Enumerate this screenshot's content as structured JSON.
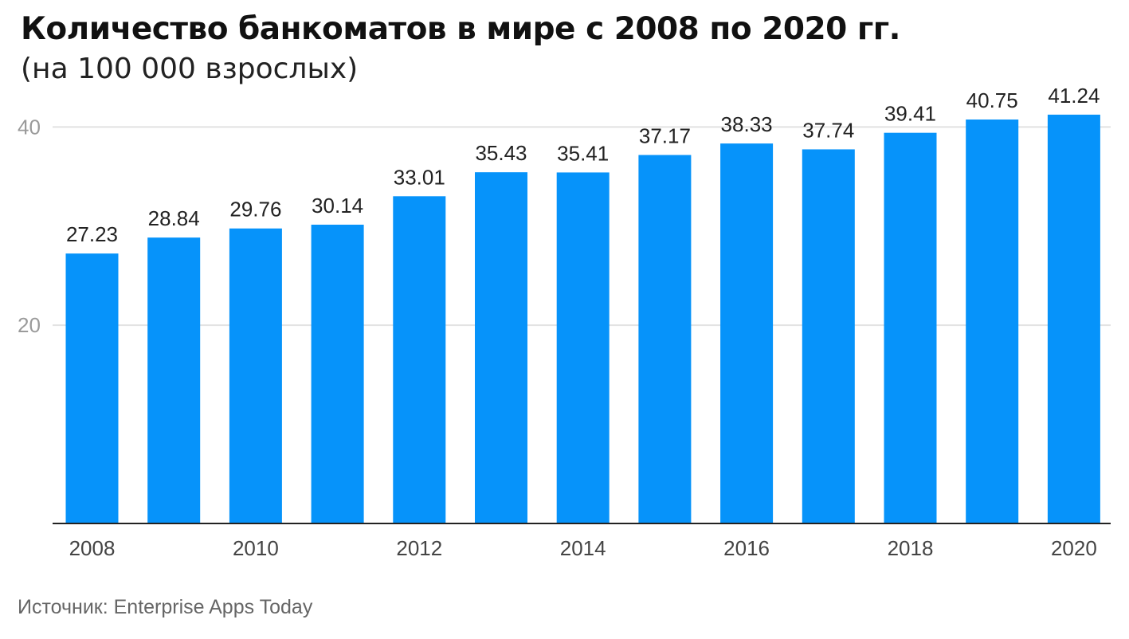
{
  "header": {
    "title": "Количество банкоматов в мире с 2008 по 2020 гг.",
    "subtitle": "(на 100 000 взрослых)"
  },
  "footer": {
    "source": "Источник: Enterprise Apps Today"
  },
  "colors": {
    "bar": "#0693fa",
    "grid": "#e2e2e2",
    "axis": "#222222"
  },
  "chart_data": {
    "type": "bar",
    "title": "Количество банкоматов в мире с 2008 по 2020 гг.",
    "subtitle": "(на 100 000 взрослых)",
    "categories": [
      "2008",
      "2009",
      "2010",
      "2011",
      "2012",
      "2013",
      "2014",
      "2015",
      "2016",
      "2017",
      "2018",
      "2019",
      "2020"
    ],
    "values": [
      27.23,
      28.84,
      29.76,
      30.14,
      33.01,
      35.43,
      35.41,
      37.17,
      38.33,
      37.74,
      39.41,
      40.75,
      41.24
    ],
    "data_labels": [
      "27.23",
      "28.84",
      "29.76",
      "30.14",
      "33.01",
      "35.43",
      "35.41",
      "37.17",
      "38.33",
      "37.74",
      "39.41",
      "40.75",
      "41.24"
    ],
    "x_tick_labels": [
      "2008",
      "2010",
      "2012",
      "2014",
      "2016",
      "2018",
      "2020"
    ],
    "y_ticks": [
      20,
      40
    ],
    "ylim": [
      0,
      40.75
    ],
    "xlabel": "",
    "ylabel": "",
    "grid": true,
    "legend": "none"
  }
}
